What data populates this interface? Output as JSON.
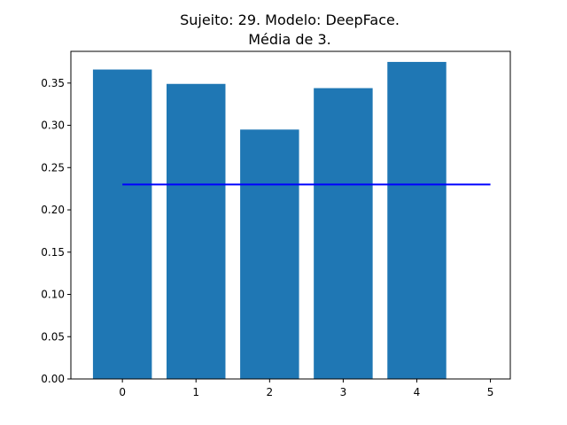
{
  "chart_data": {
    "type": "bar",
    "title": "Sujeito: 29. Modelo: DeepFace.",
    "subtitle": "Média de 3.",
    "xlabel": "",
    "ylabel": "",
    "categories": [
      0,
      1,
      2,
      3,
      4
    ],
    "values": [
      0.366,
      0.349,
      0.295,
      0.344,
      0.375
    ],
    "bar_color": "#1f77b4",
    "reference_line": {
      "x": [
        0,
        5
      ],
      "y": 0.23,
      "color": "#0000ff"
    },
    "xlim": [
      -0.7,
      5.27
    ],
    "ylim": [
      0,
      0.3875
    ],
    "xticks": [
      "0",
      "1",
      "2",
      "3",
      "4",
      "5"
    ],
    "yticks": [
      "0.00",
      "0.05",
      "0.10",
      "0.15",
      "0.20",
      "0.25",
      "0.30",
      "0.35"
    ],
    "grid": false,
    "legend": "none"
  }
}
